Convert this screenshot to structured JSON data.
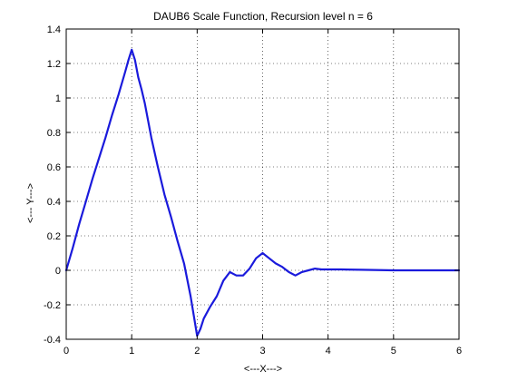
{
  "chart_data": {
    "type": "line",
    "title": "DAUB6 Scale Function, Recursion level n = 6",
    "xlabel": "<---X--->",
    "ylabel": "<--- Y--->",
    "xlim": [
      0,
      6
    ],
    "ylim": [
      -0.4,
      1.4
    ],
    "xticks": [
      "0",
      "1",
      "2",
      "3",
      "4",
      "5",
      "6"
    ],
    "yticks": [
      "-0.4",
      "-0.2",
      "0",
      "0.2",
      "0.4",
      "0.6",
      "0.8",
      "1",
      "1.2",
      "1.4"
    ],
    "grid": true,
    "line_color": "#1a1adc",
    "series": [
      {
        "x": [
          0,
          0.1,
          0.2,
          0.3,
          0.4,
          0.5,
          0.6,
          0.7,
          0.8,
          0.9,
          0.95,
          1.0,
          1.05,
          1.1,
          1.15,
          1.2,
          1.3,
          1.4,
          1.5,
          1.6,
          1.7,
          1.8,
          1.9,
          2.0,
          2.05,
          2.1,
          2.2,
          2.3,
          2.4,
          2.5,
          2.55,
          2.6,
          2.7,
          2.8,
          2.9,
          3.0,
          3.1,
          3.2,
          3.3,
          3.4,
          3.5,
          3.6,
          3.7,
          3.8,
          3.9,
          4.0,
          4.2,
          4.5,
          5.0,
          5.5,
          6.0
        ],
        "y": [
          0.0,
          0.13,
          0.27,
          0.4,
          0.53,
          0.65,
          0.77,
          0.9,
          1.02,
          1.15,
          1.22,
          1.28,
          1.22,
          1.12,
          1.05,
          0.97,
          0.77,
          0.6,
          0.44,
          0.31,
          0.17,
          0.04,
          -0.15,
          -0.38,
          -0.34,
          -0.28,
          -0.21,
          -0.15,
          -0.06,
          -0.01,
          -0.02,
          -0.03,
          -0.03,
          0.01,
          0.07,
          0.1,
          0.07,
          0.04,
          0.02,
          -0.01,
          -0.03,
          -0.01,
          0.0,
          0.01,
          0.005,
          0.005,
          0.005,
          0.003,
          0.0,
          0.0,
          0.0
        ]
      }
    ]
  }
}
